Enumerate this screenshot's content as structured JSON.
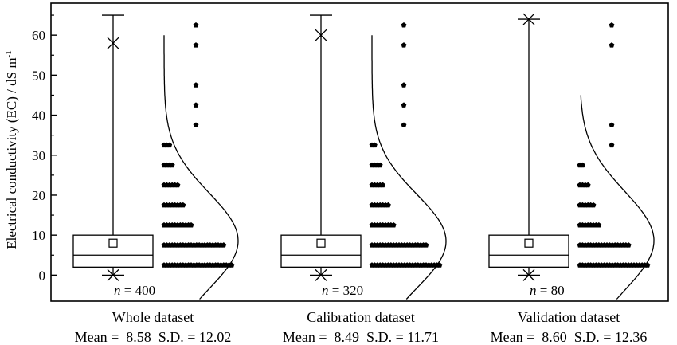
{
  "chart_data": {
    "type": "box",
    "ylabel": "Electrical conductivity (EC) / dS m",
    "ylabel_superscript": "-1",
    "ylim": [
      -6.5,
      68
    ],
    "yticks": [
      0,
      10,
      20,
      30,
      40,
      50,
      60
    ],
    "groups": [
      {
        "name": "Whole dataset",
        "n_label": "n",
        "n_text": " = 400",
        "mean_label": "Mean =  8.58  S.D. = 12.02",
        "box": {
          "q1": 2.0,
          "median": 5.0,
          "q3": 10.0,
          "whisker_low": 0.0,
          "whisker_high": 65.0,
          "mean": 8.0,
          "p1": 0.0,
          "p99": 58.0
        },
        "dots": [
          {
            "y": 2.5,
            "w": 1.0
          },
          {
            "y": 7.5,
            "w": 0.85
          },
          {
            "y": 12.5,
            "w": 0.4
          },
          {
            "y": 17.5,
            "w": 0.28
          },
          {
            "y": 22.5,
            "w": 0.2
          },
          {
            "y": 27.5,
            "w": 0.15
          },
          {
            "y": 32.5,
            "w": 0.08
          },
          {
            "y": 37.5,
            "w": 0.04
          },
          {
            "y": 42.5,
            "w": 0.04
          },
          {
            "y": 47.5,
            "w": 0.04
          },
          {
            "y": 57.5,
            "w": 0.04
          },
          {
            "y": 62.5,
            "w": 0.04
          }
        ],
        "curve": {
          "mean": 8.58,
          "sd": 12.02
        }
      },
      {
        "name": "Calibration dataset",
        "n_label": "n",
        "n_text": " = 320",
        "mean_label": "Mean =  8.49  S.D. = 11.71",
        "box": {
          "q1": 2.0,
          "median": 5.0,
          "q3": 10.0,
          "whisker_low": 0.0,
          "whisker_high": 65.0,
          "mean": 8.0,
          "p1": 0.0,
          "p99": 60.0
        },
        "dots": [
          {
            "y": 2.5,
            "w": 1.0
          },
          {
            "y": 7.5,
            "w": 0.78
          },
          {
            "y": 12.5,
            "w": 0.34
          },
          {
            "y": 17.5,
            "w": 0.26
          },
          {
            "y": 22.5,
            "w": 0.18
          },
          {
            "y": 27.5,
            "w": 0.13
          },
          {
            "y": 32.5,
            "w": 0.07
          },
          {
            "y": 37.5,
            "w": 0.04
          },
          {
            "y": 42.5,
            "w": 0.04
          },
          {
            "y": 47.5,
            "w": 0.04
          },
          {
            "y": 57.5,
            "w": 0.04
          },
          {
            "y": 62.5,
            "w": 0.04
          }
        ],
        "curve": {
          "mean": 8.49,
          "sd": 11.71
        }
      },
      {
        "name": "Validation dataset",
        "n_label": "n",
        "n_text": " = 80",
        "mean_label": "Mean =  8.60  S.D. = 12.36",
        "box": {
          "q1": 2.0,
          "median": 5.0,
          "q3": 10.0,
          "whisker_low": 0.0,
          "whisker_high": 64.0,
          "mean": 8.0,
          "p1": 0.0,
          "p99": 64.0
        },
        "dots": [
          {
            "y": 2.5,
            "w": 1.0
          },
          {
            "y": 7.5,
            "w": 0.72
          },
          {
            "y": 12.5,
            "w": 0.3
          },
          {
            "y": 17.5,
            "w": 0.2
          },
          {
            "y": 22.5,
            "w": 0.12
          },
          {
            "y": 27.5,
            "w": 0.07
          },
          {
            "y": 32.5,
            "w": 0.04
          },
          {
            "y": 37.5,
            "w": 0.04
          },
          {
            "y": 57.5,
            "w": 0.04
          },
          {
            "y": 62.5,
            "w": 0.04
          }
        ],
        "curve": {
          "mean": 8.6,
          "sd": 12.36
        }
      }
    ]
  }
}
